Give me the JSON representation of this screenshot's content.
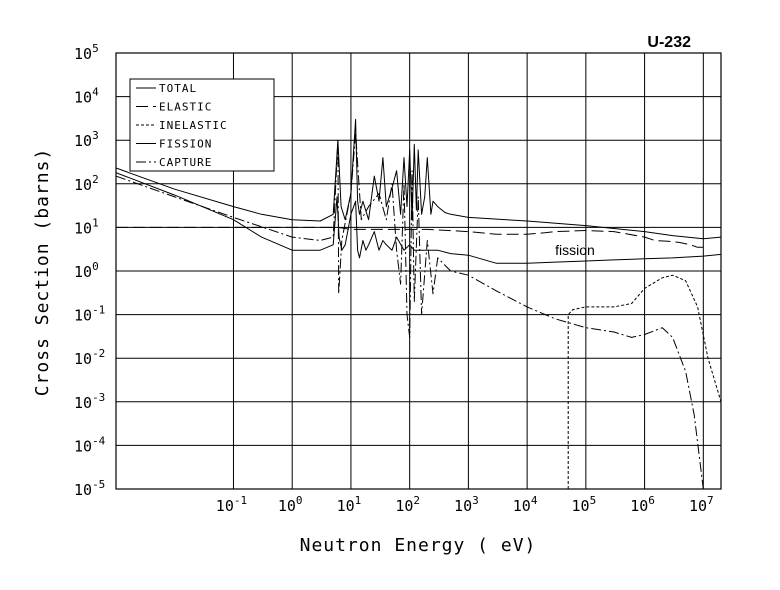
{
  "chart_data": {
    "type": "line",
    "title": "U-232",
    "xlabel": "Neutron Energy ( eV)",
    "ylabel": "Cross Section (barns)",
    "xscale": "log",
    "yscale": "log",
    "xlim": [
      0.001,
      20000000
    ],
    "ylim": [
      1e-05,
      100000
    ],
    "x_ticks": [
      {
        "value": 0.1,
        "base": "10",
        "exp": "-1"
      },
      {
        "value": 1,
        "base": "10",
        "exp": "0"
      },
      {
        "value": 10,
        "base": "10",
        "exp": "1"
      },
      {
        "value": 100,
        "base": "10",
        "exp": "2"
      },
      {
        "value": 1000,
        "base": "10",
        "exp": "3"
      },
      {
        "value": 10000,
        "base": "10",
        "exp": "4"
      },
      {
        "value": 100000,
        "base": "10",
        "exp": "5"
      },
      {
        "value": 1000000,
        "base": "10",
        "exp": "6"
      },
      {
        "value": 10000000,
        "base": "10",
        "exp": "7"
      }
    ],
    "y_ticks": [
      {
        "value": 1e-05,
        "base": "10",
        "exp": "-5"
      },
      {
        "value": 0.0001,
        "base": "10",
        "exp": "-4"
      },
      {
        "value": 0.001,
        "base": "10",
        "exp": "-3"
      },
      {
        "value": 0.01,
        "base": "10",
        "exp": "-2"
      },
      {
        "value": 0.1,
        "base": "10",
        "exp": "-1"
      },
      {
        "value": 1,
        "base": "10",
        "exp": "0"
      },
      {
        "value": 10,
        "base": "10",
        "exp": "1"
      },
      {
        "value": 100,
        "base": "10",
        "exp": "2"
      },
      {
        "value": 1000,
        "base": "10",
        "exp": "3"
      },
      {
        "value": 10000,
        "base": "10",
        "exp": "4"
      },
      {
        "value": 100000,
        "base": "10",
        "exp": "5"
      }
    ],
    "grid": true,
    "legend_position": "top-left",
    "annotations": [
      {
        "text": "fission",
        "x": 30000,
        "y": 2.3
      }
    ],
    "series": [
      {
        "name": "TOTAL",
        "dash": "solid",
        "x": [
          0.001,
          0.01,
          0.1,
          0.3,
          1,
          3,
          5,
          6,
          6.8,
          8,
          10,
          12,
          13,
          14,
          16,
          20,
          25,
          30,
          35,
          40,
          50,
          60,
          70,
          80,
          90,
          100,
          110,
          120,
          130,
          140,
          160,
          180,
          200,
          230,
          250,
          300,
          400,
          500,
          1000,
          10000,
          100000,
          1000000,
          3000000,
          10000000,
          20000000
        ],
        "y": [
          230,
          75,
          30,
          20,
          15,
          14,
          20,
          1000,
          30,
          15,
          60,
          3000,
          40,
          20,
          40,
          15,
          150,
          40,
          400,
          30,
          80,
          200,
          20,
          400,
          30,
          600,
          15,
          800,
          25,
          600,
          20,
          50,
          400,
          20,
          40,
          30,
          22,
          20,
          17,
          14,
          11,
          8,
          6.5,
          5.5,
          6
        ]
      },
      {
        "name": "ELASTIC",
        "dash": "long-dash",
        "x": [
          0.001,
          0.01,
          0.1,
          1,
          3,
          6,
          10,
          20,
          50,
          100,
          200,
          1000,
          3000,
          10000,
          20000,
          30000,
          100000,
          300000,
          1000000,
          1500000,
          2500000,
          4000000,
          6000000,
          8000000,
          10000000
        ],
        "y": [
          10,
          10,
          10,
          10,
          10,
          10,
          9,
          9,
          9,
          9,
          9,
          8,
          7,
          7,
          7.5,
          8,
          8.5,
          8,
          6,
          5,
          4.8,
          4.5,
          4,
          3.5,
          3.5
        ]
      },
      {
        "name": "INELASTIC",
        "dash": "short-dash",
        "x": [
          50000,
          50000,
          60000,
          100000,
          300000,
          600000,
          1000000,
          2000000,
          3000000,
          5000000,
          8000000,
          12000000,
          20000000
        ],
        "y": [
          1e-05,
          0.1,
          0.13,
          0.15,
          0.15,
          0.18,
          0.4,
          0.7,
          0.8,
          0.6,
          0.15,
          0.01,
          0.001
        ]
      },
      {
        "name": "FISSION",
        "dash": "solid",
        "x": [
          0.001,
          0.01,
          0.1,
          0.3,
          1,
          3,
          5,
          5.8,
          6.3,
          7,
          8,
          10,
          12,
          13,
          14,
          16,
          18,
          20,
          25,
          30,
          35,
          40,
          50,
          60,
          80,
          100,
          120,
          150,
          200,
          300,
          500,
          1000,
          3000,
          10000,
          30000,
          100000,
          300000,
          1000000,
          3000000,
          10000000,
          20000000
        ],
        "y": [
          180,
          55,
          15,
          6,
          3,
          3,
          4,
          50,
          6,
          3,
          4,
          20,
          40,
          3,
          2,
          5,
          3,
          4,
          8,
          3,
          5,
          4,
          3,
          6,
          3,
          4,
          3,
          3,
          3,
          3,
          2.5,
          2.3,
          1.5,
          1.5,
          1.6,
          1.7,
          1.8,
          1.9,
          2,
          2.2,
          2.4
        ]
      },
      {
        "name": "CAPTURE",
        "dash": "dash-dot",
        "x": [
          0.001,
          0.01,
          0.1,
          1,
          3,
          5,
          6,
          6.2,
          7,
          10,
          12,
          15,
          20,
          30,
          40,
          50,
          60,
          70,
          80,
          90,
          100,
          110,
          120,
          140,
          160,
          200,
          250,
          300,
          500,
          1000,
          3000,
          10000,
          30000,
          100000,
          300000,
          600000,
          1000000,
          2000000,
          3000000,
          5000000,
          7000000,
          10000000
        ],
        "y": [
          150,
          50,
          17,
          6,
          5,
          6,
          1000,
          0.3,
          5,
          60,
          1500,
          15,
          30,
          60,
          15,
          100,
          3,
          0.5,
          100,
          0.1,
          0.03,
          200,
          0.2,
          50,
          0.1,
          5,
          0.3,
          2,
          1,
          0.8,
          0.35,
          0.15,
          0.08,
          0.05,
          0.04,
          0.03,
          0.035,
          0.05,
          0.03,
          0.005,
          0.0005,
          1e-05
        ]
      }
    ]
  }
}
